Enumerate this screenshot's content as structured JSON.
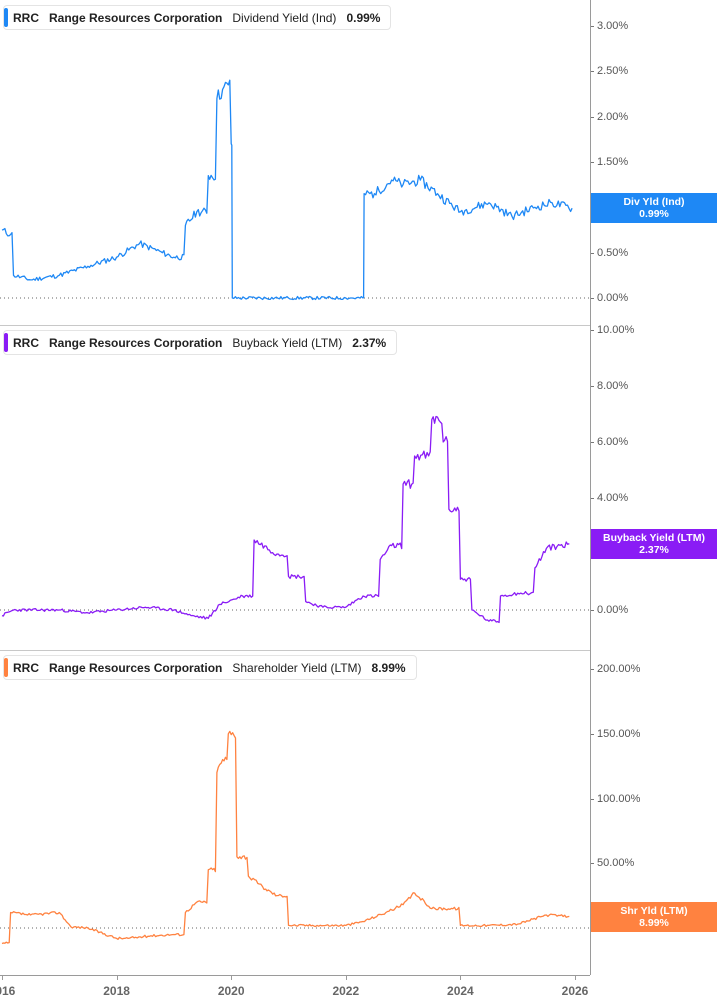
{
  "panels": [
    {
      "ticker": "RRC",
      "company": "Range Resources Corporation",
      "metric": "Dividend Yield (Ind)",
      "value": "0.99%",
      "color": "#1e88f5",
      "flag_label": "Div Yld (Ind)",
      "flag_value": "0.99%",
      "yticks": [
        "3.00%",
        "2.50%",
        "2.00%",
        "1.50%",
        "1.00%",
        "0.50%",
        "0.00%"
      ]
    },
    {
      "ticker": "RRC",
      "company": "Range Resources Corporation",
      "metric": "Buyback Yield (LTM)",
      "value": "2.37%",
      "color": "#8a1cf5",
      "flag_label": "Buyback Yield (LTM)",
      "flag_value": "2.37%",
      "yticks": [
        "10.00%",
        "8.00%",
        "6.00%",
        "4.00%",
        "2.00%",
        "0.00%"
      ]
    },
    {
      "ticker": "RRC",
      "company": "Range Resources Corporation",
      "metric": "Shareholder Yield (LTM)",
      "value": "8.99%",
      "color": "#ff8240",
      "flag_label": "Shr Yld (LTM)",
      "flag_value": "8.99%",
      "yticks": [
        "200.00%",
        "150.00%",
        "100.00%",
        "50.00%",
        "0.00%"
      ]
    }
  ],
  "xaxis": {
    "ticks": [
      "2016",
      "2018",
      "2020",
      "2022",
      "2024",
      "2026"
    ]
  },
  "chart_data": [
    {
      "type": "line",
      "title": "RRC Range Resources Corporation Dividend Yield (Ind)",
      "xlabel": "",
      "ylabel": "",
      "ylim": [
        0,
        3.0
      ],
      "grid": false,
      "legend_position": "top-left",
      "x": [
        2016.0,
        2016.15,
        2016.2,
        2016.5,
        2017.0,
        2017.5,
        2018.0,
        2018.4,
        2018.8,
        2019.0,
        2019.2,
        2019.4,
        2019.6,
        2019.75,
        2019.85,
        2019.95,
        2020.0,
        2020.02,
        2021.0,
        2022.0,
        2022.3,
        2022.32,
        2022.5,
        2022.8,
        2023.0,
        2023.3,
        2023.6,
        2024.0,
        2024.5,
        2024.9,
        2025.3,
        2025.6,
        2025.95
      ],
      "values": [
        0.75,
        0.7,
        0.25,
        0.2,
        0.25,
        0.35,
        0.45,
        0.6,
        0.5,
        0.45,
        0.8,
        0.95,
        1.35,
        2.2,
        2.3,
        2.35,
        1.7,
        0.0,
        0.0,
        0.0,
        0.0,
        1.15,
        1.15,
        1.3,
        1.25,
        1.3,
        1.15,
        0.95,
        1.05,
        0.9,
        1.0,
        1.05,
        0.99
      ],
      "series": [
        {
          "name": "Dividend Yield (Ind)",
          "last": 0.99
        }
      ]
    },
    {
      "type": "line",
      "title": "RRC Range Resources Corporation Buyback Yield (LTM)",
      "xlabel": "",
      "ylabel": "",
      "ylim": [
        -1.0,
        10.0
      ],
      "grid": false,
      "legend_position": "top-left",
      "x": [
        2016.0,
        2016.2,
        2017.0,
        2017.5,
        2018.0,
        2018.5,
        2019.0,
        2019.3,
        2019.6,
        2019.8,
        2020.2,
        2020.4,
        2020.8,
        2021.0,
        2021.3,
        2021.6,
        2022.0,
        2022.3,
        2022.6,
        2022.8,
        2023.0,
        2023.2,
        2023.5,
        2023.7,
        2023.8,
        2024.0,
        2024.2,
        2024.5,
        2024.7,
        2025.0,
        2025.3,
        2025.5,
        2025.9
      ],
      "values": [
        -0.2,
        0.0,
        0.0,
        -0.1,
        0.0,
        0.1,
        0.0,
        -0.2,
        -0.3,
        0.2,
        0.5,
        2.5,
        2.0,
        1.2,
        0.3,
        0.1,
        0.1,
        0.5,
        1.8,
        2.3,
        4.5,
        5.5,
        6.8,
        6.0,
        3.6,
        1.1,
        0.0,
        -0.4,
        0.5,
        0.6,
        1.5,
        2.2,
        2.37
      ],
      "series": [
        {
          "name": "Buyback Yield (LTM)",
          "last": 2.37
        }
      ]
    },
    {
      "type": "line",
      "title": "RRC Range Resources Corporation Shareholder Yield (LTM)",
      "xlabel": "",
      "ylabel": "",
      "ylim": [
        -20,
        200
      ],
      "grid": false,
      "legend_position": "top-left",
      "x": [
        2016.0,
        2016.15,
        2016.5,
        2017.0,
        2017.2,
        2017.5,
        2018.0,
        2018.2,
        2018.6,
        2019.0,
        2019.2,
        2019.4,
        2019.6,
        2019.75,
        2019.85,
        2019.95,
        2020.1,
        2020.3,
        2020.6,
        2020.8,
        2021.0,
        2021.5,
        2022.0,
        2022.3,
        2022.7,
        2023.0,
        2023.2,
        2023.5,
        2024.0,
        2024.5,
        2025.0,
        2025.5,
        2025.9
      ],
      "values": [
        -12,
        12,
        10,
        12,
        1,
        0,
        -8,
        -8,
        -6,
        -5,
        12,
        20,
        45,
        120,
        130,
        150,
        55,
        40,
        30,
        25,
        2,
        2,
        2,
        5,
        12,
        18,
        27,
        15,
        2,
        2,
        3,
        10,
        8.99
      ],
      "series": [
        {
          "name": "Shareholder Yield (LTM)",
          "last": 8.99
        }
      ]
    }
  ]
}
